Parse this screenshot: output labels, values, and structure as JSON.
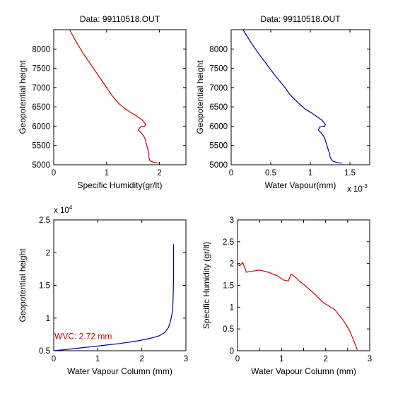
{
  "chart_data": [
    {
      "type": "line",
      "title": "Data: 99110518.OUT",
      "xlabel": "Specific Humidity(gr/lt)",
      "ylabel": "Geopotential height",
      "xlim": [
        0,
        2.5
      ],
      "ylim": [
        5000,
        8500
      ],
      "xticks": [
        0,
        1,
        2
      ],
      "yticks": [
        5000,
        5500,
        6000,
        6500,
        7000,
        7500,
        8000
      ],
      "exponent_label": "",
      "line_color": "#cc0000",
      "series": [
        {
          "x": [
            0.3,
            0.42,
            0.55,
            0.7,
            0.85,
            1.0,
            1.1,
            1.22,
            1.35,
            1.46,
            1.58,
            1.68,
            1.74,
            1.72,
            1.64,
            1.6,
            1.66,
            1.72,
            1.76,
            1.8,
            1.8,
            1.82,
            1.9,
            2.0
          ],
          "y": [
            8500,
            8200,
            7900,
            7600,
            7300,
            7000,
            6800,
            6600,
            6450,
            6350,
            6250,
            6150,
            6050,
            6000,
            5980,
            5900,
            5820,
            5700,
            5500,
            5300,
            5200,
            5100,
            5060,
            5040
          ]
        }
      ]
    },
    {
      "type": "line",
      "title": "Data: 99110518.OUT",
      "xlabel": "Water Vapour(mm)",
      "ylabel": "Geopotential height",
      "xlim": [
        0,
        1.75
      ],
      "ylim": [
        5000,
        8500
      ],
      "xticks": [
        0,
        0.5,
        1,
        1.5
      ],
      "yticks": [
        5000,
        5500,
        6000,
        6500,
        7000,
        7500,
        8000
      ],
      "exponent_label": "x 10",
      "exponent_power": "-3",
      "line_color": "#000099",
      "series": [
        {
          "x": [
            0.15,
            0.24,
            0.34,
            0.45,
            0.56,
            0.68,
            0.75,
            0.85,
            0.93,
            1.01,
            1.08,
            1.15,
            1.19,
            1.18,
            1.12,
            1.1,
            1.14,
            1.18,
            1.21,
            1.24,
            1.25,
            1.28,
            1.33,
            1.4
          ],
          "y": [
            8500,
            8200,
            7900,
            7600,
            7300,
            7000,
            6800,
            6600,
            6450,
            6350,
            6250,
            6150,
            6050,
            6000,
            5980,
            5900,
            5820,
            5700,
            5500,
            5300,
            5200,
            5100,
            5060,
            5040
          ]
        }
      ]
    },
    {
      "type": "line",
      "title": "",
      "xlabel": "Water Vapour Column (mm)",
      "ylabel": "Geopotential height",
      "xlim": [
        0,
        3
      ],
      "ylim": [
        0.5,
        2.5
      ],
      "xticks": [
        0,
        1,
        2,
        3
      ],
      "yticks": [
        0.5,
        1,
        1.5,
        2,
        2.5
      ],
      "exponent_label": "x 10",
      "exponent_power": "4",
      "line_color": "#000099",
      "annotation": "WVC: 2.72 mm",
      "series": [
        {
          "x": [
            0.0,
            0.3,
            0.7,
            1.1,
            1.5,
            1.9,
            2.2,
            2.4,
            2.52,
            2.6,
            2.65,
            2.68,
            2.7,
            2.71,
            2.72,
            2.72
          ],
          "y": [
            0.5,
            0.52,
            0.55,
            0.58,
            0.61,
            0.65,
            0.69,
            0.73,
            0.78,
            0.85,
            0.95,
            1.05,
            1.15,
            1.3,
            1.6,
            2.13
          ]
        }
      ]
    },
    {
      "type": "line",
      "title": "",
      "xlabel": "Water Vapour Column (mm)",
      "ylabel": "Specific Humidity (gr/lt)",
      "xlim": [
        0,
        3
      ],
      "ylim": [
        0,
        3
      ],
      "xticks": [
        0,
        0.5,
        1,
        1.5,
        2,
        2.5,
        3
      ],
      "xticklabels": [
        "0",
        "",
        "1",
        "",
        "2",
        "",
        "3"
      ],
      "yticks": [
        0,
        0.5,
        1,
        1.5,
        2,
        2.5,
        3
      ],
      "exponent_label": "",
      "line_color": "#cc0000",
      "series": [
        {
          "x": [
            0.0,
            0.05,
            0.12,
            0.2,
            0.3,
            0.5,
            0.7,
            0.9,
            1.05,
            1.15,
            1.22,
            1.3,
            1.4,
            1.55,
            1.75,
            1.95,
            2.2,
            2.4,
            2.55,
            2.65,
            2.72
          ],
          "y": [
            1.98,
            1.95,
            2.02,
            1.8,
            1.82,
            1.85,
            1.8,
            1.72,
            1.62,
            1.6,
            1.76,
            1.7,
            1.6,
            1.48,
            1.3,
            1.1,
            0.95,
            0.7,
            0.45,
            0.2,
            0.02
          ]
        }
      ]
    }
  ]
}
